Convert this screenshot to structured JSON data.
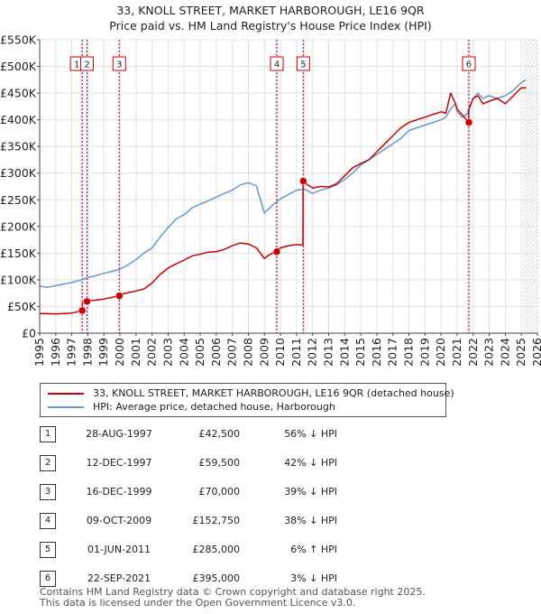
{
  "title": {
    "line1": "33, KNOLL STREET, MARKET HARBOROUGH, LE16 9QR",
    "line2": "Price paid vs. HM Land Registry's House Price Index (HPI)"
  },
  "chart_data": {
    "type": "line",
    "title": "33, KNOLL STREET, MARKET HARBOROUGH, LE16 9QR — Price paid vs. HM Land Registry's House Price Index (HPI)",
    "xlabel": "",
    "ylabel": "",
    "xlim": [
      1995,
      2026
    ],
    "ylim": [
      0,
      550000
    ],
    "x_ticks": [
      "1995",
      "1996",
      "1997",
      "1998",
      "1999",
      "2000",
      "2001",
      "2002",
      "2003",
      "2004",
      "2005",
      "2006",
      "2007",
      "2008",
      "2009",
      "2010",
      "2011",
      "2012",
      "2013",
      "2014",
      "2015",
      "2016",
      "2017",
      "2018",
      "2019",
      "2020",
      "2021",
      "2022",
      "2023",
      "2024",
      "2025",
      "2026"
    ],
    "y_ticks": [
      {
        "value": 0,
        "label": "£0"
      },
      {
        "value": 50000,
        "label": "£50K"
      },
      {
        "value": 100000,
        "label": "£100K"
      },
      {
        "value": 150000,
        "label": "£150K"
      },
      {
        "value": 200000,
        "label": "£200K"
      },
      {
        "value": 250000,
        "label": "£250K"
      },
      {
        "value": 300000,
        "label": "£300K"
      },
      {
        "value": 350000,
        "label": "£350K"
      },
      {
        "value": 400000,
        "label": "£400K"
      },
      {
        "value": 450000,
        "label": "£450K"
      },
      {
        "value": 500000,
        "label": "£500K"
      },
      {
        "value": 550000,
        "label": "£550K"
      }
    ],
    "grid": true,
    "future_shade_from": 2025.1,
    "series": [
      {
        "name": "33, KNOLL STREET, MARKET HARBOROUGH, LE16 9QR (detached house)",
        "color": "#cc0000",
        "x": [
          1995,
          1996,
          1997,
          1997.65,
          1997.66,
          1997.94,
          1997.95,
          1998.5,
          1999,
          1999.5,
          1999.96,
          1999.97,
          2000.5,
          2001,
          2001.5,
          2002,
          2002.5,
          2003,
          2003.5,
          2004,
          2004.5,
          2005,
          2005.5,
          2006,
          2006.5,
          2007,
          2007.5,
          2008,
          2008.5,
          2009,
          2009.2,
          2009.5,
          2009.77,
          2009.78,
          2010,
          2010.5,
          2011,
          2011.4,
          2011.41,
          2011.5,
          2012,
          2012.5,
          2013,
          2013.5,
          2014,
          2014.5,
          2015,
          2015.5,
          2016,
          2016.5,
          2017,
          2017.5,
          2018,
          2018.5,
          2019,
          2019.5,
          2020,
          2020.3,
          2020.6,
          2020.9,
          2021,
          2021.3,
          2021.72,
          2021.73,
          2022,
          2022.3,
          2022.6,
          2023,
          2023.5,
          2024,
          2024.5,
          2025,
          2025.3
        ],
        "values": [
          37000,
          36000,
          37500,
          42500,
          57000,
          59500,
          60500,
          62000,
          64000,
          67000,
          70000,
          72000,
          76000,
          79000,
          83000,
          94000,
          110000,
          122000,
          130000,
          137000,
          145000,
          148000,
          152000,
          153000,
          157000,
          164000,
          169000,
          167000,
          160000,
          140000,
          145000,
          150000,
          152750,
          155000,
          160000,
          164000,
          166000,
          165000,
          285000,
          282000,
          272000,
          275000,
          274000,
          280000,
          295000,
          310000,
          318000,
          325000,
          340000,
          355000,
          370000,
          385000,
          395000,
          400000,
          405000,
          410000,
          415000,
          412000,
          450000,
          430000,
          420000,
          410000,
          395000,
          420000,
          440000,
          445000,
          430000,
          435000,
          440000,
          430000,
          445000,
          460000,
          460000
        ]
      },
      {
        "name": "HPI: Average price, detached house, Harborough",
        "color": "#6699cc",
        "x": [
          1995,
          1995.5,
          1996,
          1996.5,
          1997,
          1997.5,
          1998,
          1998.5,
          1999,
          1999.5,
          2000,
          2000.5,
          2001,
          2001.5,
          2002,
          2002.5,
          2003,
          2003.5,
          2004,
          2004.5,
          2005,
          2005.5,
          2006,
          2006.5,
          2007,
          2007.5,
          2008,
          2008.5,
          2009,
          2009.5,
          2010,
          2010.5,
          2011,
          2011.5,
          2012,
          2012.5,
          2013,
          2013.5,
          2014,
          2014.5,
          2015,
          2015.5,
          2016,
          2016.5,
          2017,
          2017.5,
          2018,
          2018.5,
          2019,
          2019.5,
          2020,
          2020.3,
          2020.6,
          2020.9,
          2021,
          2021.3,
          2021.6,
          2022,
          2022.3,
          2022.6,
          2023,
          2023.5,
          2024,
          2024.5,
          2025,
          2025.3
        ],
        "values": [
          88000,
          86000,
          89000,
          92000,
          95000,
          99000,
          104000,
          108000,
          112000,
          116000,
          120000,
          128000,
          138000,
          150000,
          160000,
          180000,
          198000,
          214000,
          222000,
          235000,
          242000,
          248000,
          255000,
          262000,
          268000,
          278000,
          282000,
          276000,
          225000,
          240000,
          252000,
          260000,
          268000,
          270000,
          262000,
          268000,
          272000,
          278000,
          288000,
          300000,
          315000,
          325000,
          335000,
          345000,
          355000,
          365000,
          380000,
          385000,
          390000,
          395000,
          400000,
          405000,
          420000,
          430000,
          415000,
          405000,
          410000,
          440000,
          450000,
          440000,
          445000,
          440000,
          445000,
          455000,
          470000,
          475000
        ]
      }
    ],
    "events": [
      {
        "n": "1",
        "x": 1997.65,
        "price": 42500
      },
      {
        "n": "2",
        "x": 1997.95,
        "price": 59500
      },
      {
        "n": "3",
        "x": 1999.96,
        "price": 70000
      },
      {
        "n": "4",
        "x": 2009.77,
        "price": 152750
      },
      {
        "n": "5",
        "x": 2011.42,
        "price": 285000
      },
      {
        "n": "6",
        "x": 2021.73,
        "price": 395000
      }
    ]
  },
  "legend": {
    "items": [
      {
        "label": "33, KNOLL STREET, MARKET HARBOROUGH, LE16 9QR (detached house)",
        "color": "#cc0000"
      },
      {
        "label": "HPI: Average price, detached house, Harborough",
        "color": "#6699cc"
      }
    ]
  },
  "sales": [
    {
      "n": "1",
      "date": "28-AUG-1997",
      "price": "£42,500",
      "hpi": "56% ↓ HPI"
    },
    {
      "n": "2",
      "date": "12-DEC-1997",
      "price": "£59,500",
      "hpi": "42% ↓ HPI"
    },
    {
      "n": "3",
      "date": "16-DEC-1999",
      "price": "£70,000",
      "hpi": "39% ↓ HPI"
    },
    {
      "n": "4",
      "date": "09-OCT-2009",
      "price": "£152,750",
      "hpi": "38% ↓ HPI"
    },
    {
      "n": "5",
      "date": "01-JUN-2011",
      "price": "£285,000",
      "hpi": "6% ↑ HPI"
    },
    {
      "n": "6",
      "date": "22-SEP-2021",
      "price": "£395,000",
      "hpi": "3% ↓ HPI"
    }
  ],
  "footer": {
    "line1": "Contains HM Land Registry data © Crown copyright and database right 2025.",
    "line2": "This data is licensed under the Open Government Licence v3.0."
  }
}
